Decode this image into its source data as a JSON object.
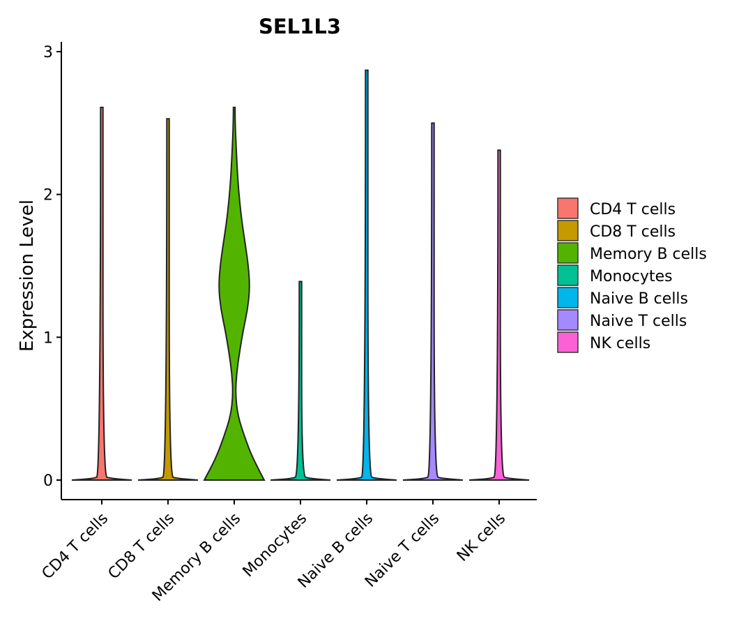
{
  "chart_data": {
    "type": "violin",
    "title": "SEL1L3",
    "xlabel": "",
    "ylabel": "Expression Level",
    "ylim": [
      -0.14,
      3.0
    ],
    "yticks": [
      0,
      1,
      2,
      3
    ],
    "grid": false,
    "legend_position": "right",
    "categories": [
      "CD4 T cells",
      "CD8 T cells",
      "Memory B cells",
      "Monocytes",
      "Naive B cells",
      "Naive T cells",
      "NK cells"
    ],
    "colors": [
      "#F8766D",
      "#C49A00",
      "#53B400",
      "#00C094",
      "#00B6EB",
      "#A58AFF",
      "#FB61D7"
    ],
    "max_values": [
      2.61,
      2.53,
      2.61,
      1.39,
      2.87,
      2.5,
      2.31
    ],
    "density_profiles": [
      [
        [
          0,
          1.0
        ],
        [
          0.01,
          0.3
        ],
        [
          0.03,
          0.04
        ],
        [
          2.61,
          0.04
        ]
      ],
      [
        [
          0,
          1.0
        ],
        [
          0.01,
          0.3
        ],
        [
          0.03,
          0.04
        ],
        [
          2.53,
          0.04
        ]
      ],
      [
        [
          0,
          1.0
        ],
        [
          0.15,
          0.62
        ],
        [
          0.3,
          0.35
        ],
        [
          0.45,
          0.12
        ],
        [
          0.6,
          0.04
        ],
        [
          0.75,
          0.08
        ],
        [
          0.9,
          0.18
        ],
        [
          1.05,
          0.3
        ],
        [
          1.2,
          0.45
        ],
        [
          1.35,
          0.52
        ],
        [
          1.5,
          0.47
        ],
        [
          1.65,
          0.37
        ],
        [
          1.8,
          0.26
        ],
        [
          1.95,
          0.18
        ],
        [
          2.1,
          0.12
        ],
        [
          2.3,
          0.07
        ],
        [
          2.5,
          0.03
        ],
        [
          2.61,
          0.01
        ]
      ],
      [
        [
          0,
          1.0
        ],
        [
          0.01,
          0.3
        ],
        [
          0.03,
          0.04
        ],
        [
          1.39,
          0.04
        ]
      ],
      [
        [
          0,
          1.0
        ],
        [
          0.01,
          0.3
        ],
        [
          0.03,
          0.04
        ],
        [
          2.87,
          0.04
        ]
      ],
      [
        [
          0,
          1.0
        ],
        [
          0.01,
          0.3
        ],
        [
          0.03,
          0.04
        ],
        [
          2.5,
          0.04
        ]
      ],
      [
        [
          0,
          1.0
        ],
        [
          0.01,
          0.3
        ],
        [
          0.03,
          0.04
        ],
        [
          2.31,
          0.04
        ]
      ]
    ]
  }
}
